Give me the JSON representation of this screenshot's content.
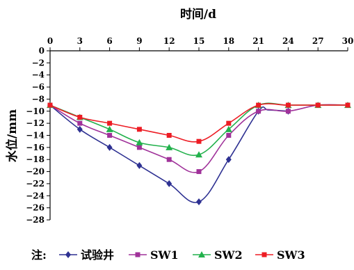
{
  "chart_data": {
    "type": "line",
    "title": "",
    "xlabel": "时间/d",
    "ylabel": "水位/mm",
    "x_axis_position": "top",
    "xlim": [
      0,
      30
    ],
    "ylim": [
      -28,
      0
    ],
    "xticks": [
      0,
      3,
      6,
      9,
      12,
      15,
      18,
      21,
      24,
      27,
      30
    ],
    "yticks": [
      0,
      -2,
      -4,
      -6,
      -8,
      -10,
      -12,
      -14,
      -16,
      -18,
      -20,
      -22,
      -24,
      -26,
      -28
    ],
    "grid": false,
    "legend_position": "bottom",
    "legend_prefix": "注:",
    "series": [
      {
        "name": "试验井",
        "color": "#2E3192",
        "marker": "diamond",
        "x": [
          0,
          3,
          6,
          9,
          12,
          15,
          18,
          21,
          22,
          24
        ],
        "y": [
          -9,
          -13,
          -16,
          -19,
          -22,
          -25,
          -18,
          -10,
          -9.8,
          -10
        ],
        "markers_at": [
          0,
          3,
          6,
          9,
          12,
          15,
          18,
          21,
          24
        ],
        "marker_values": [
          -9,
          -13,
          -16,
          -19,
          -22,
          -25,
          -18,
          -10,
          -10
        ]
      },
      {
        "name": "SW1",
        "color": "#A0329A",
        "marker": "square",
        "x": [
          0,
          3,
          6,
          9,
          12,
          15,
          18,
          21,
          24,
          27,
          30
        ],
        "y": [
          -9,
          -12,
          -14,
          -16,
          -18,
          -20,
          -14,
          -10,
          -10,
          -9,
          -9
        ],
        "markers_at": [
          0,
          3,
          6,
          9,
          12,
          15,
          18,
          21,
          24,
          27,
          30
        ],
        "marker_values": [
          -9,
          -12,
          -14,
          -16,
          -18,
          -20,
          -14,
          -10,
          -10,
          -9,
          -9
        ]
      },
      {
        "name": "SW2",
        "color": "#22B14C",
        "marker": "triangle",
        "x": [
          0,
          3,
          6,
          9,
          12,
          15,
          18,
          21,
          24,
          27,
          30
        ],
        "y": [
          -9,
          -11,
          -13,
          -15.2,
          -16,
          -17.2,
          -13,
          -9,
          -9,
          -9,
          -9
        ],
        "markers_at": [
          0,
          3,
          6,
          9,
          12,
          15,
          18,
          21,
          24,
          27,
          30
        ],
        "marker_values": [
          -9,
          -11,
          -13,
          -15.2,
          -16,
          -17.2,
          -13,
          -9,
          -9,
          -9,
          -9
        ]
      },
      {
        "name": "SW3",
        "color": "#ED1C24",
        "marker": "square",
        "x": [
          0,
          3,
          6,
          9,
          12,
          15,
          18,
          21,
          24,
          27,
          30
        ],
        "y": [
          -9,
          -11,
          -12,
          -13,
          -14,
          -15,
          -12,
          -9,
          -9,
          -9,
          -9
        ],
        "markers_at": [
          0,
          3,
          6,
          9,
          12,
          15,
          18,
          21,
          24,
          27,
          30
        ],
        "marker_values": [
          -9,
          -11,
          -12,
          -13,
          -14,
          -15,
          -12,
          -9,
          -9,
          -9,
          -9
        ]
      }
    ]
  }
}
